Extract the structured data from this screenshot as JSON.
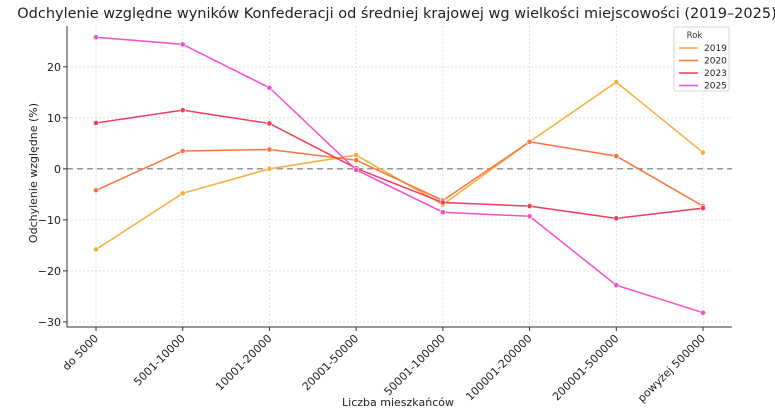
{
  "chart_data": {
    "type": "line",
    "title": "Odchylenie względne wyników Konfederacji od średniej krajowej wg wielkości miejscowości (2019–2025)",
    "xlabel": "Liczba mieszkańców",
    "ylabel": "Odchylenie względne (%)",
    "categories": [
      "do 5000",
      "5001-10000",
      "10001-20000",
      "20001-50000",
      "50001-100000",
      "100001-200000",
      "200001-500000",
      "powyżej 500000"
    ],
    "ylim": [
      -31,
      28
    ],
    "yticks": [
      20,
      10,
      0,
      -10,
      -20,
      -30
    ],
    "ytick_labels": [
      "20",
      "10",
      "0",
      "−10",
      "−20",
      "−30"
    ],
    "grid": true,
    "zero_line": true,
    "legend": {
      "title": "Rok",
      "placement": "top-right"
    },
    "series": [
      {
        "name": "2019",
        "color": "#f8ac3a",
        "values": [
          -15.8,
          -4.8,
          0.0,
          2.7,
          -7.0,
          5.3,
          17.0,
          3.2
        ]
      },
      {
        "name": "2020",
        "color": "#f8743c",
        "values": [
          -4.2,
          3.5,
          3.8,
          1.7,
          -6.2,
          5.3,
          2.5,
          -7.3
        ]
      },
      {
        "name": "2023",
        "color": "#f03c5a",
        "values": [
          9.0,
          11.5,
          8.9,
          0.1,
          -6.6,
          -7.3,
          -9.7,
          -7.7
        ]
      },
      {
        "name": "2025",
        "color": "#f84ecc",
        "values": [
          25.8,
          24.4,
          15.9,
          -0.2,
          -8.5,
          -9.3,
          -22.8,
          -28.2
        ]
      }
    ]
  }
}
